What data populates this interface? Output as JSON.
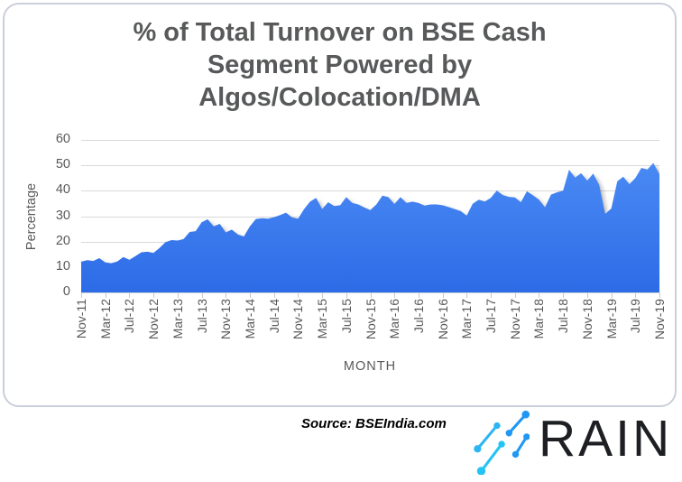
{
  "chart_data": {
    "type": "area",
    "title": "% of Total Turnover on BSE Cash\nSegment Powered by\nAlgos/Colocation/DMA",
    "xlabel": "MONTH",
    "ylabel": "Percentage",
    "ylim": [
      0,
      60
    ],
    "yticks": [
      0,
      10,
      20,
      30,
      40,
      50,
      60
    ],
    "grid": true,
    "legend": "none",
    "x_start": "Nov-11",
    "x_end": "Nov-19",
    "x_frequency": "monthly",
    "x_tick_labels": [
      "Nov-11",
      "Mar-12",
      "Jul-12",
      "Nov-12",
      "Mar-13",
      "Jul-13",
      "Nov-13",
      "Mar-14",
      "Jul-14",
      "Nov-14",
      "Mar-15",
      "Jul-15",
      "Nov-15",
      "Mar-16",
      "Jul-16",
      "Nov-16",
      "Mar-17",
      "Jul-17",
      "Nov-17",
      "Mar-18",
      "Jul-18",
      "Nov-18",
      "Mar-19",
      "Jul-19",
      "Nov-19"
    ],
    "x_tick_every_n_points": 4,
    "series_name": "% of total turnover powered by Algos/Colocation/DMA",
    "values": [
      12.1,
      12.7,
      12.4,
      13.5,
      11.8,
      11.5,
      12.2,
      13.9,
      12.8,
      14.3,
      15.8,
      16.0,
      15.5,
      17.5,
      19.8,
      20.6,
      20.4,
      21.0,
      23.8,
      24.1,
      27.6,
      28.8,
      26.0,
      27.0,
      23.6,
      24.7,
      22.8,
      22.0,
      26.0,
      28.9,
      29.2,
      29.0,
      29.6,
      30.4,
      31.4,
      29.5,
      29.0,
      32.8,
      35.7,
      37.2,
      32.8,
      35.5,
      34.0,
      34.3,
      37.5,
      35.2,
      34.6,
      33.4,
      32.4,
      34.6,
      38.1,
      37.5,
      34.8,
      37.5,
      35.2,
      35.7,
      35.2,
      34.2,
      34.6,
      34.6,
      34.3,
      33.6,
      32.8,
      32.0,
      30.2,
      34.9,
      36.5,
      35.8,
      37.2,
      40.1,
      38.3,
      37.6,
      37.4,
      35.5,
      39.8,
      38.2,
      36.5,
      33.5,
      38.5,
      39.4,
      40.0,
      48.3,
      45.2,
      46.9,
      44.0,
      46.8,
      42.3,
      30.9,
      33.0,
      43.7,
      45.5,
      42.6,
      45.0,
      49.0,
      48.4,
      50.9,
      46.5
    ],
    "colors": {
      "area_fill_top": "#4a8af4",
      "area_fill_bottom": "#2c6be6",
      "gridline": "#d9d9d9",
      "axis_text": "#595959",
      "title_text": "#58595a",
      "tick_mark": "#c6cad2"
    }
  },
  "source": {
    "label": "Source: BSEIndia.com"
  },
  "logo": {
    "text": "RAIN",
    "icon": "rain-streaks-icon",
    "colors": {
      "cyan": "#27bdf3",
      "blue": "#1f97f3",
      "text": "#1d1f23"
    }
  }
}
